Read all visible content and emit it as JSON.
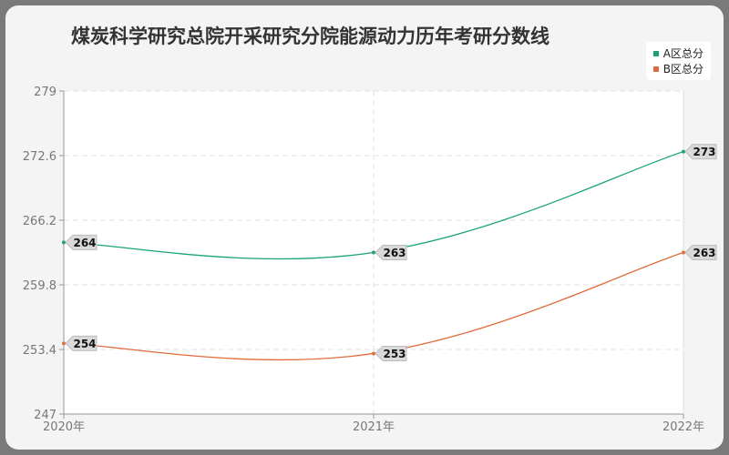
{
  "chart_data": {
    "type": "line",
    "title": "煤炭科学研究总院开采研究分院能源动力历年考研分数线",
    "categories": [
      "2020年",
      "2021年",
      "2022年"
    ],
    "series": [
      {
        "name": "A区总分",
        "values": [
          264,
          263,
          273
        ],
        "color": "#1aa37a"
      },
      {
        "name": "B区总分",
        "values": [
          254,
          253,
          263
        ],
        "color": "#e06c3c"
      }
    ],
    "yticks": [
      "279",
      "272.6",
      "266.2",
      "259.8",
      "253.4",
      "247"
    ],
    "ylim": [
      247,
      279
    ],
    "grid": true,
    "legend_position": "top-right"
  }
}
